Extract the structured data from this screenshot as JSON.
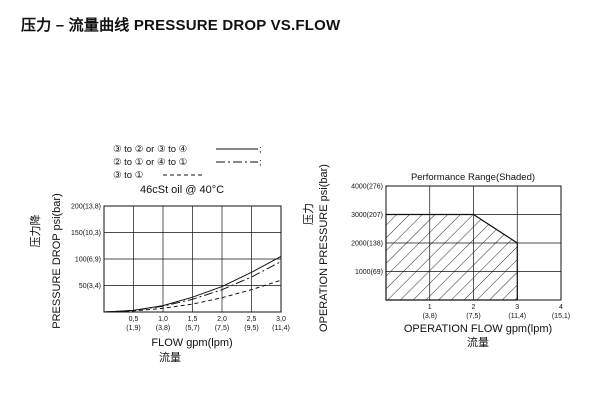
{
  "page": {
    "title": "压力 – 流量曲线 PRESSURE DROP VS.FLOW"
  },
  "chart_data": [
    {
      "type": "line",
      "title": "",
      "legend": {
        "entries": [
          {
            "label": "③ to ② or ③ to ④",
            "style": "solid",
            "tail": ";"
          },
          {
            "label": "② to ① or ④ to ①",
            "style": "dash-dot",
            "tail": ";"
          },
          {
            "label": "③ to ①",
            "style": "dashed",
            "tail": ""
          }
        ],
        "condition": "46cSt oil @ 40°C",
        "placement": "top"
      },
      "xlabel": "FLOW gpm(lpm)",
      "xlabel_cn": "流量",
      "ylabel": "PRESSURE DROP psi(bar)",
      "ylabel_cn": "压力降",
      "x_ticks": [
        {
          "value": 0.5,
          "top": "0,5",
          "bottom": "(1,9)"
        },
        {
          "value": 1.0,
          "top": "1,0",
          "bottom": "(3,8)"
        },
        {
          "value": 1.5,
          "top": "1,5",
          "bottom": "(5,7)"
        },
        {
          "value": 2.0,
          "top": "2,0",
          "bottom": "(7,5)"
        },
        {
          "value": 2.5,
          "top": "2,5",
          "bottom": "(9,5)"
        },
        {
          "value": 3.0,
          "top": "3,0",
          "bottom": "(11,4)"
        }
      ],
      "y_ticks": [
        {
          "value": 50,
          "label": "50(3,4)"
        },
        {
          "value": 100,
          "label": "100(6,9)"
        },
        {
          "value": 150,
          "label": "150(10,3)"
        },
        {
          "value": 200,
          "label": "200(13,8)"
        }
      ],
      "xlim": [
        0,
        3.0
      ],
      "ylim": [
        0,
        200
      ],
      "grid": true,
      "series": [
        {
          "style": "solid",
          "x": [
            0,
            0.5,
            1.0,
            1.5,
            2.0,
            2.5,
            3.0
          ],
          "y": [
            0,
            3,
            12,
            28,
            48,
            75,
            105
          ]
        },
        {
          "style": "dash-dot",
          "x": [
            0,
            0.5,
            1.0,
            1.5,
            2.0,
            2.5,
            3.0
          ],
          "y": [
            0,
            3,
            11,
            24,
            42,
            66,
            95
          ]
        },
        {
          "style": "dashed",
          "x": [
            0,
            0.5,
            1.0,
            1.5,
            2.0,
            2.5,
            3.0
          ],
          "y": [
            0,
            2,
            7,
            15,
            27,
            42,
            60
          ]
        }
      ]
    },
    {
      "type": "area",
      "title": "Performance Range(Shaded)",
      "xlabel": "OPERATION FLOW gpm(lpm)",
      "xlabel_cn": "流量",
      "ylabel": "OPERATION PRESSURE psi(bar)",
      "ylabel_cn": "压力",
      "x_ticks": [
        {
          "value": 1,
          "top": "1",
          "bottom": "(3,8)"
        },
        {
          "value": 2,
          "top": "2",
          "bottom": "(7,5)"
        },
        {
          "value": 3,
          "top": "3",
          "bottom": "(11,4)"
        },
        {
          "value": 4,
          "top": "4",
          "bottom": "(15,1)"
        }
      ],
      "y_ticks": [
        {
          "value": 1000,
          "label": "1000(69)"
        },
        {
          "value": 2000,
          "label": "2000(138)"
        },
        {
          "value": 3000,
          "label": "3000(207)"
        },
        {
          "value": 4000,
          "label": "4000(276)"
        }
      ],
      "xlim": [
        0,
        4
      ],
      "ylim": [
        0,
        4000
      ],
      "grid": true,
      "shaded_region": {
        "x": [
          0,
          2,
          3,
          3,
          0
        ],
        "y": [
          3000,
          3000,
          2000,
          0,
          0
        ]
      }
    }
  ],
  "colors": {
    "line": "#111111",
    "grid": "#111111",
    "background": "#ffffff"
  }
}
